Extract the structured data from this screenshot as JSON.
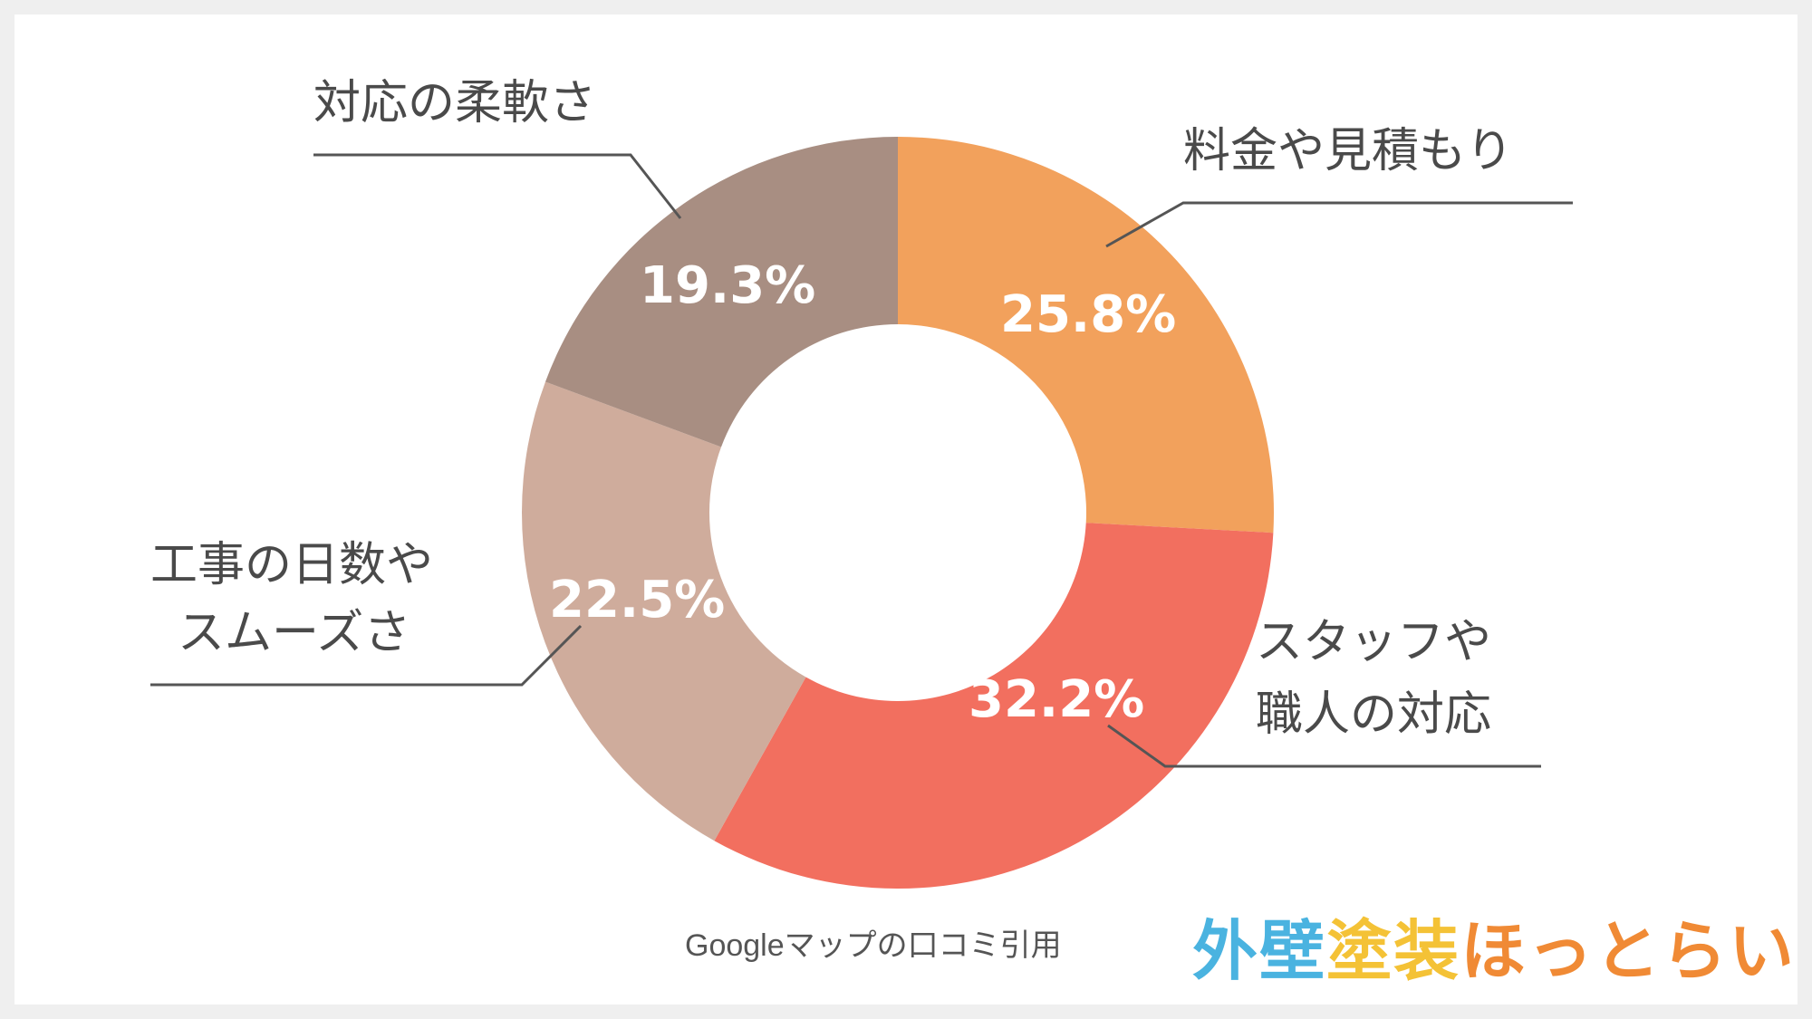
{
  "chart_data": {
    "type": "pie",
    "variant": "donut",
    "title": "",
    "slices": [
      {
        "label": "料金や見積もり",
        "value": 25.8,
        "display": "25.8%",
        "color": "#f2a15c"
      },
      {
        "label": "スタッフや職人の対応",
        "label_lines": [
          "スタッフや",
          "職人の対応"
        ],
        "value": 32.2,
        "display": "32.2%",
        "color": "#f26f5f"
      },
      {
        "label": "工事の日数やスムーズさ",
        "label_lines": [
          "工事の日数や",
          "スムーズさ"
        ],
        "value": 22.5,
        "display": "22.5%",
        "color": "#cfac9c"
      },
      {
        "label": "対応の柔軟さ",
        "value": 19.3,
        "display": "19.3%",
        "color": "#a88e82"
      }
    ]
  },
  "labels": {
    "slice0": "料金や見積もり",
    "slice1_line1": "スタッフや",
    "slice1_line2": "職人の対応",
    "slice2_line1": "工事の日数や",
    "slice2_line2": "スムーズさ",
    "slice3": "対応の柔軟さ",
    "pct0": "25.8%",
    "pct1": "32.2%",
    "pct2": "22.5%",
    "pct3": "19.3%"
  },
  "source_note": "Googleマップの口コミ引用",
  "logo": {
    "text": "外壁塗装ほっとらいん",
    "parts": [
      "外壁",
      "塗装",
      "ほっとらいん"
    ],
    "colors": [
      "#4ab3e0",
      "#f4c236",
      "#f08a35"
    ]
  }
}
